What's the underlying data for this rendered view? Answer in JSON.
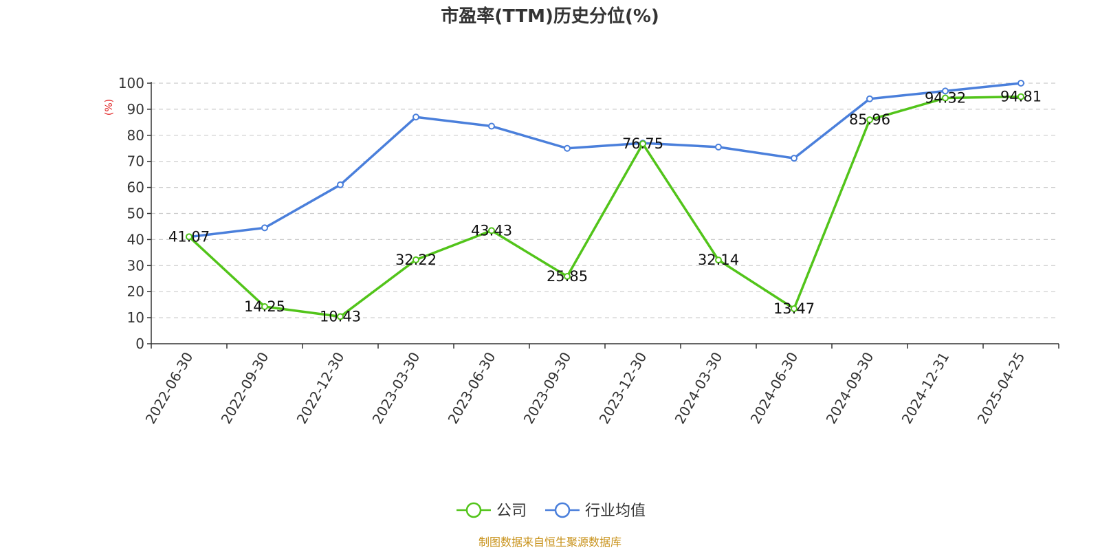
{
  "chart_data": {
    "type": "line",
    "title": "市盈率(TTM)历史分位(%)",
    "ylabel": "(%)",
    "ylim": [
      0,
      100
    ],
    "yticks": [
      0,
      10,
      20,
      30,
      40,
      50,
      60,
      70,
      80,
      90,
      100
    ],
    "grid": true,
    "legend_position": "bottom-center",
    "categories": [
      "2022-06-30",
      "2022-09-30",
      "2022-12-30",
      "2023-03-30",
      "2023-06-30",
      "2023-09-30",
      "2023-12-30",
      "2024-03-30",
      "2024-06-30",
      "2024-09-30",
      "2024-12-31",
      "2025-04-25"
    ],
    "series": [
      {
        "name": "公司",
        "color": "#52c41a",
        "show_labels": true,
        "values": [
          41.07,
          14.25,
          10.43,
          32.22,
          43.43,
          25.85,
          76.75,
          32.14,
          13.47,
          85.96,
          94.32,
          94.81
        ]
      },
      {
        "name": "行业均值",
        "color": "#4a7fdb",
        "show_labels": false,
        "values": [
          41.0,
          44.5,
          61.0,
          87.0,
          83.5,
          75.0,
          77.0,
          75.5,
          71.2,
          94.0,
          97.0,
          100.0
        ]
      }
    ],
    "source": "制图数据来自恒生聚源数据库",
    "source_color": "#c8921a",
    "ylabel_color": "#e02020",
    "axis_color": "#333333",
    "grid_color": "#cccccc"
  }
}
